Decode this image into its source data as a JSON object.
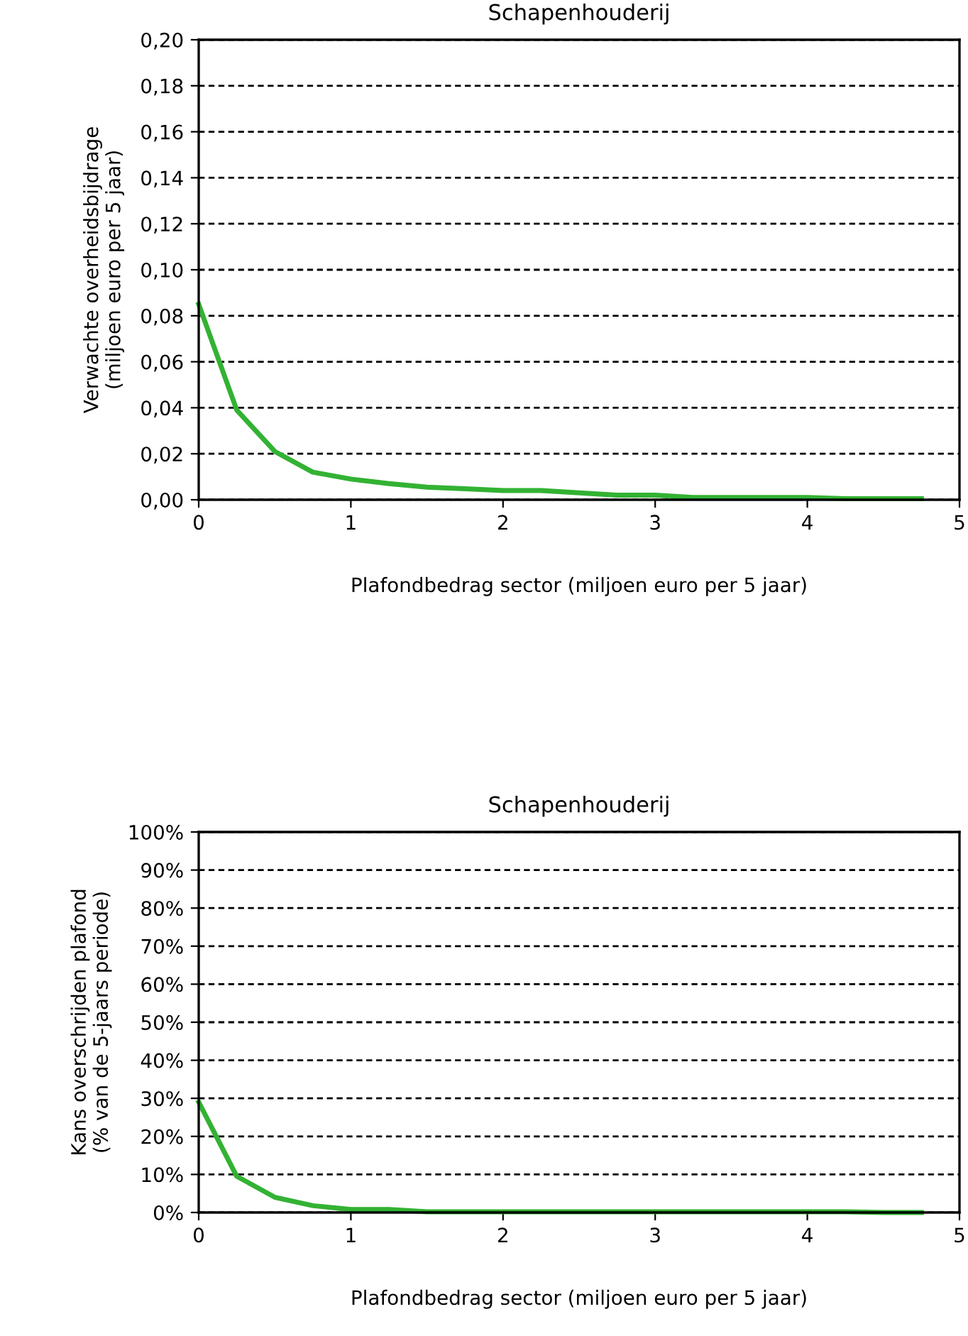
{
  "chart_data": [
    {
      "type": "line",
      "title": "Schapenhouderij",
      "xlabel": "Plafondbedrag sector (miljoen euro per 5 jaar)",
      "ylabel": "Verwachte overheidsbijdrage\n(miljoen euro per 5 jaar)",
      "x": [
        0,
        0.25,
        0.5,
        0.75,
        1,
        1.25,
        1.5,
        1.75,
        2,
        2.25,
        2.5,
        2.75,
        3,
        3.25,
        3.5,
        3.75,
        4,
        4.25,
        4.5,
        4.75
      ],
      "series": [
        {
          "color": "#33b233",
          "values": [
            0.085,
            0.039,
            0.021,
            0.012,
            0.009,
            0.007,
            0.0055,
            0.0048,
            0.004,
            0.004,
            0.003,
            0.002,
            0.002,
            0.001,
            0.001,
            0.001,
            0.001,
            0.0005,
            0.0005,
            0.0005
          ]
        }
      ],
      "xlim": [
        0,
        5
      ],
      "xticks": [
        0,
        1,
        2,
        3,
        4,
        5
      ],
      "ylim": [
        0,
        0.2
      ],
      "yticks": [
        {
          "value": 0,
          "label": "0,00"
        },
        {
          "value": 0.02,
          "label": "0,02"
        },
        {
          "value": 0.04,
          "label": "0,04"
        },
        {
          "value": 0.06,
          "label": "0,06"
        },
        {
          "value": 0.08,
          "label": "0,08"
        },
        {
          "value": 0.1,
          "label": "0,10"
        },
        {
          "value": 0.12,
          "label": "0,12"
        },
        {
          "value": 0.14,
          "label": "0,14"
        },
        {
          "value": 0.16,
          "label": "0,16"
        },
        {
          "value": 0.18,
          "label": "0,18"
        },
        {
          "value": 0.2,
          "label": "0,20"
        }
      ],
      "grid": "y",
      "legend": false,
      "marker": "none",
      "line_style": "solid"
    },
    {
      "type": "line",
      "title": "Schapenhouderij",
      "xlabel": "Plafondbedrag sector (miljoen euro per 5 jaar)",
      "ylabel": "Kans overschrijden plafond\n(% van de 5-jaars periode)",
      "x": [
        0,
        0.25,
        0.5,
        0.75,
        1,
        1.25,
        1.5,
        1.75,
        2,
        2.25,
        2.5,
        2.75,
        3,
        3.25,
        3.5,
        3.75,
        4,
        4.25,
        4.5,
        4.75
      ],
      "series": [
        {
          "color": "#33b233",
          "values": [
            29,
            9.5,
            4,
            1.8,
            0.8,
            0.8,
            0.2,
            0.2,
            0.2,
            0.2,
            0.2,
            0.2,
            0.2,
            0.2,
            0.2,
            0.2,
            0.2,
            0.2,
            0,
            0
          ]
        }
      ],
      "xlim": [
        0,
        5
      ],
      "xticks": [
        0,
        1,
        2,
        3,
        4,
        5
      ],
      "ylim": [
        0,
        100
      ],
      "yticks": [
        {
          "value": 0,
          "label": "0%"
        },
        {
          "value": 10,
          "label": "10%"
        },
        {
          "value": 20,
          "label": "20%"
        },
        {
          "value": 30,
          "label": "30%"
        },
        {
          "value": 40,
          "label": "40%"
        },
        {
          "value": 50,
          "label": "50%"
        },
        {
          "value": 60,
          "label": "60%"
        },
        {
          "value": 70,
          "label": "70%"
        },
        {
          "value": 80,
          "label": "80%"
        },
        {
          "value": 90,
          "label": "90%"
        },
        {
          "value": 100,
          "label": "100%"
        }
      ],
      "grid": "y",
      "legend": false,
      "marker": "none",
      "line_style": "solid"
    }
  ]
}
